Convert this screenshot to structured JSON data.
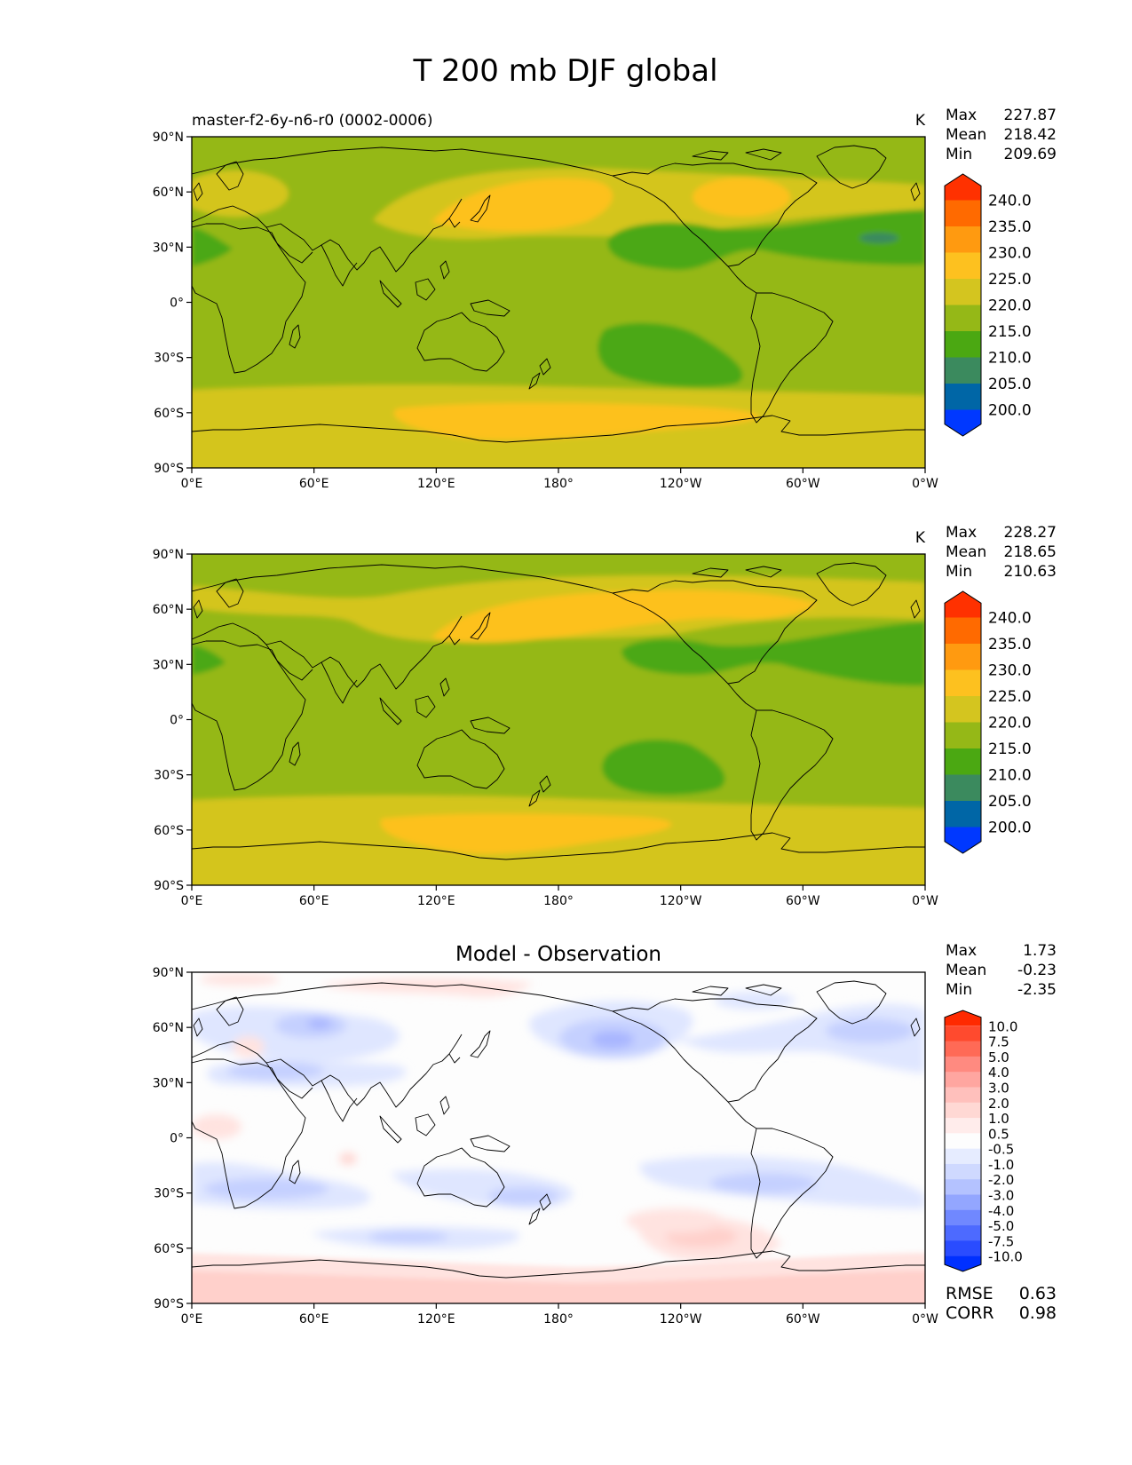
{
  "figure": {
    "title": "T 200 mb DJF global"
  },
  "axis_labels": {
    "lat": [
      "90°N",
      "60°N",
      "30°N",
      "0°",
      "30°S",
      "60°S",
      "90°S"
    ],
    "lon": [
      "0°E",
      "60°E",
      "120°E",
      "180°",
      "120°W",
      "60°W",
      "0°W"
    ]
  },
  "colors": {
    "land_outline": "#000000",
    "map_border": "#000000"
  },
  "panels": [
    {
      "left_title": "master-f2-6y-n6-r0 (0002-0006)",
      "center_title": "",
      "units": "K",
      "stats": {
        "max_label": "Max",
        "max": "227.87",
        "mean_label": "Mean",
        "mean": "218.42",
        "min_label": "Min",
        "min": "209.69"
      },
      "colorbar": {
        "labels": [
          "240.0",
          "235.0",
          "230.0",
          "225.0",
          "220.0",
          "215.0",
          "210.0",
          "205.0",
          "200.0"
        ],
        "colors": [
          "#ff3100",
          "#ff6a00",
          "#ff9a10",
          "#fdc11f",
          "#d4c51f",
          "#95b817",
          "#4ba812",
          "#3b8a5e",
          "#0066a6",
          "#0038ff"
        ]
      }
    },
    {
      "left_title": "",
      "center_title": "",
      "units": "K",
      "stats": {
        "max_label": "Max",
        "max": "228.27",
        "mean_label": "Mean",
        "mean": "218.65",
        "min_label": "Min",
        "min": "210.63"
      },
      "colorbar": {
        "labels": [
          "240.0",
          "235.0",
          "230.0",
          "225.0",
          "220.0",
          "215.0",
          "210.0",
          "205.0",
          "200.0"
        ],
        "colors": [
          "#ff3100",
          "#ff6a00",
          "#ff9a10",
          "#fdc11f",
          "#d4c51f",
          "#95b817",
          "#4ba812",
          "#3b8a5e",
          "#0066a6",
          "#0038ff"
        ]
      }
    },
    {
      "left_title": "",
      "center_title": "Model - Observation",
      "units": "",
      "stats": {
        "max_label": "Max",
        "max": "1.73",
        "mean_label": "Mean",
        "mean": "-0.23",
        "min_label": "Min",
        "min": "-2.35"
      },
      "metrics": {
        "rmse_label": "RMSE",
        "rmse": "0.63",
        "corr_label": "CORR",
        "corr": "0.98"
      },
      "colorbar": {
        "labels": [
          "10.0",
          "7.5",
          "5.0",
          "4.0",
          "3.0",
          "2.0",
          "1.0",
          "0.5",
          "-0.5",
          "-1.0",
          "-2.0",
          "-3.0",
          "-4.0",
          "-5.0",
          "-7.5",
          "-10.0"
        ],
        "colors": [
          "#ff2a00",
          "#ff4a2e",
          "#ff6a56",
          "#ff8a80",
          "#ffa6a0",
          "#ffc0bc",
          "#ffd8d4",
          "#ffeceb",
          "#fdfdfd",
          "#e6ecff",
          "#cfd9ff",
          "#b4c2ff",
          "#93a6ff",
          "#7088ff",
          "#4d6aff",
          "#2a4cff",
          "#0030ff"
        ]
      }
    }
  ]
}
